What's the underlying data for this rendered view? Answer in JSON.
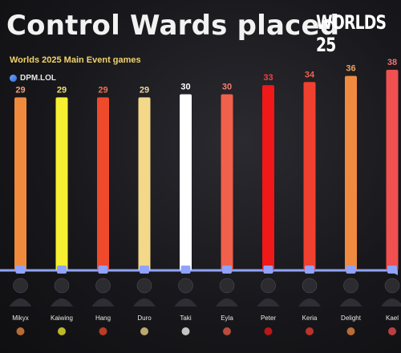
{
  "header": {
    "title": "Control Wards placed",
    "subtitle": "Worlds 2025 Main Event games",
    "source": "DPM.LOL",
    "logo_text": "WORLDS 25"
  },
  "colors": {
    "background": "#18181c",
    "subtitle": "#f3d36b",
    "baseline": "#8fa3ff"
  },
  "chart_data": {
    "type": "bar",
    "title": "Control Wards placed",
    "subtitle": "Worlds 2025 Main Event games",
    "categories": [
      "Mikyx",
      "Kaiwing",
      "Hang",
      "Duro",
      "Taki",
      "Eyla",
      "Peter",
      "Keria",
      "Delight",
      "Kael"
    ],
    "values": [
      29,
      29,
      29,
      29,
      30,
      30,
      33,
      34,
      36,
      38
    ],
    "bar_colors": [
      "#f08a3c",
      "#f7f032",
      "#f04a2c",
      "#f4d88a",
      "#ffffff",
      "#f0604a",
      "#f01818",
      "#f04030",
      "#f08a40",
      "#f05050"
    ],
    "label_colors": [
      "#f0a070",
      "#f0e070",
      "#f07050",
      "#f0d8a0",
      "#ffffff",
      "#f08070",
      "#f04040",
      "#f06050",
      "#f0a060",
      "#f07070"
    ],
    "ylim": [
      0,
      38
    ],
    "grid": false,
    "legend": "none"
  }
}
